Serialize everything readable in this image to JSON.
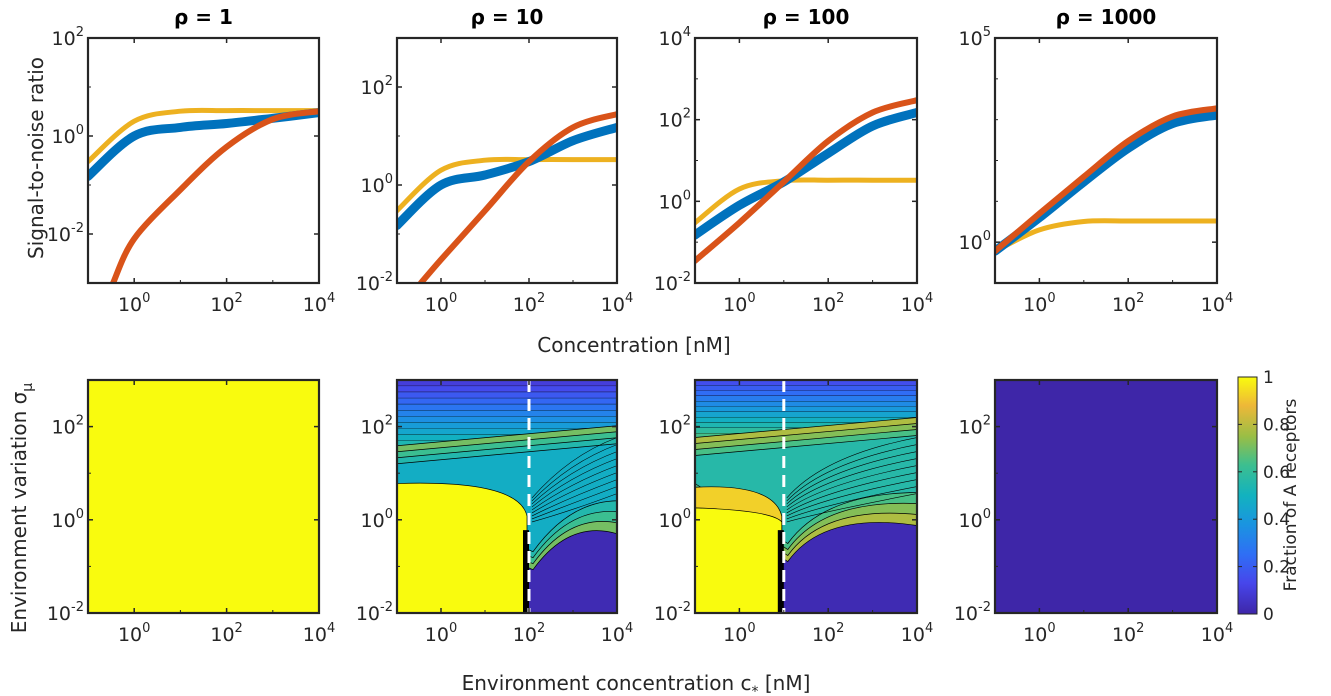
{
  "chart_data": [
    {
      "type": "line",
      "panel": "top-1",
      "title": "ρ = 1",
      "ylabel": "Signal-to-noise ratio",
      "xscale": "log",
      "yscale": "log",
      "xlim": [
        0.1,
        10000
      ],
      "ylim": [
        0.001,
        100
      ],
      "xticks": [
        1,
        100,
        10000
      ],
      "yticks": [
        0.01,
        1,
        100
      ],
      "series": [
        {
          "color": "#EDB120",
          "x": [
            0.1,
            1,
            10,
            100,
            1000,
            10000
          ],
          "y": [
            0.3,
            2.0,
            3.2,
            3.3,
            3.3,
            3.3
          ]
        },
        {
          "color": "#0072BD",
          "x": [
            0.1,
            1,
            10,
            100,
            1000,
            10000
          ],
          "y": [
            0.15,
            1.0,
            1.5,
            1.8,
            2.3,
            3.0
          ]
        },
        {
          "color": "#D95319",
          "x": [
            0.35,
            1,
            10,
            100,
            1000,
            10000
          ],
          "y": [
            0.001,
            0.008,
            0.08,
            0.6,
            2.2,
            3.2
          ]
        }
      ]
    },
    {
      "type": "line",
      "panel": "top-2",
      "title": "ρ = 10",
      "xscale": "log",
      "yscale": "log",
      "xlim": [
        0.1,
        10000
      ],
      "ylim": [
        0.01,
        1000
      ],
      "xticks": [
        1,
        100,
        10000
      ],
      "yticks": [
        0.01,
        1,
        100
      ],
      "series": [
        {
          "color": "#EDB120",
          "x": [
            0.1,
            1,
            10,
            100,
            1000,
            10000
          ],
          "y": [
            0.3,
            2.0,
            3.2,
            3.3,
            3.3,
            3.3
          ]
        },
        {
          "color": "#0072BD",
          "x": [
            0.1,
            1,
            10,
            100,
            1000,
            10000
          ],
          "y": [
            0.15,
            1.0,
            1.6,
            3.0,
            8.0,
            15
          ]
        },
        {
          "color": "#D95319",
          "x": [
            0.35,
            1,
            10,
            100,
            1000,
            10000
          ],
          "y": [
            0.01,
            0.03,
            0.3,
            3.0,
            15,
            28
          ]
        }
      ]
    },
    {
      "type": "line",
      "panel": "top-3",
      "title": "ρ = 100",
      "xscale": "log",
      "yscale": "log",
      "xlim": [
        0.1,
        10000
      ],
      "ylim": [
        0.01,
        10000
      ],
      "xticks": [
        1,
        100,
        10000
      ],
      "yticks": [
        0.01,
        1,
        100,
        10000
      ],
      "series": [
        {
          "color": "#EDB120",
          "x": [
            0.1,
            1,
            10,
            100,
            1000,
            10000
          ],
          "y": [
            0.3,
            2.0,
            3.2,
            3.3,
            3.3,
            3.3
          ]
        },
        {
          "color": "#0072BD",
          "x": [
            0.1,
            1,
            10,
            100,
            1000,
            10000
          ],
          "y": [
            0.15,
            0.8,
            3.0,
            15,
            70,
            150
          ]
        },
        {
          "color": "#D95319",
          "x": [
            0.1,
            1,
            10,
            100,
            1000,
            10000
          ],
          "y": [
            0.035,
            0.3,
            3.0,
            30,
            150,
            300
          ]
        }
      ]
    },
    {
      "type": "line",
      "panel": "top-4",
      "title": "ρ = 1000",
      "xscale": "log",
      "yscale": "log",
      "xlim": [
        0.1,
        10000
      ],
      "ylim": [
        0.1,
        100000
      ],
      "xticks": [
        1,
        100,
        10000
      ],
      "yticks": [
        1,
        100000
      ],
      "series": [
        {
          "color": "#EDB120",
          "x": [
            0.1,
            1,
            10,
            100,
            1000,
            10000
          ],
          "y": [
            0.6,
            2.0,
            3.2,
            3.3,
            3.3,
            3.3
          ]
        },
        {
          "color": "#0072BD",
          "x": [
            0.1,
            1,
            10,
            100,
            1000,
            10000
          ],
          "y": [
            0.6,
            4,
            30,
            200,
            800,
            1300
          ]
        },
        {
          "color": "#D95319",
          "x": [
            0.1,
            1,
            10,
            100,
            1000,
            10000
          ],
          "y": [
            0.6,
            5,
            40,
            300,
            1200,
            1900
          ]
        }
      ]
    },
    {
      "type": "heatmap",
      "panel": "bottom-1",
      "ylabel": "Environment variation σ_μ",
      "xscale": "log",
      "yscale": "log",
      "xlim": [
        0.1,
        10000
      ],
      "ylim": [
        0.01,
        1000
      ],
      "xticks": [
        1,
        100,
        10000
      ],
      "yticks": [
        0.01,
        1,
        100
      ],
      "fraction": 1.0
    },
    {
      "type": "heatmap",
      "panel": "bottom-2",
      "xscale": "log",
      "yscale": "log",
      "xlim": [
        0.1,
        10000
      ],
      "ylim": [
        0.01,
        1000
      ],
      "xticks": [
        1,
        100,
        10000
      ],
      "yticks": [
        0.01,
        1,
        100
      ],
      "dashed_line_x": 100
    },
    {
      "type": "heatmap",
      "panel": "bottom-3",
      "xscale": "log",
      "yscale": "log",
      "xlim": [
        0.1,
        10000
      ],
      "ylim": [
        0.01,
        1000
      ],
      "xticks": [
        1,
        100,
        10000
      ],
      "yticks": [
        0.01,
        1,
        100
      ],
      "dashed_line_x": 10
    },
    {
      "type": "heatmap",
      "panel": "bottom-4",
      "xscale": "log",
      "yscale": "log",
      "xlim": [
        0.1,
        10000
      ],
      "ylim": [
        0.01,
        1000
      ],
      "xticks": [
        1,
        100,
        10000
      ],
      "yticks": [
        0.01,
        1,
        100
      ],
      "fraction": 0.0
    }
  ],
  "labels": {
    "top_xlabel": "Concentration [nM]",
    "bottom_xlabel": "Environment concentration c",
    "bottom_xlabel_sub": "*",
    "bottom_xlabel_unit": " [nM]",
    "top_ylabel": "Signal-to-noise ratio",
    "bottom_ylabel": "Environment variation σ",
    "bottom_ylabel_sub": "μ"
  },
  "colorbar": {
    "label": "Fraction of A receptors",
    "ticks": [
      "0",
      "0.2",
      "0.4",
      "0.6",
      "0.8",
      "1"
    ]
  }
}
